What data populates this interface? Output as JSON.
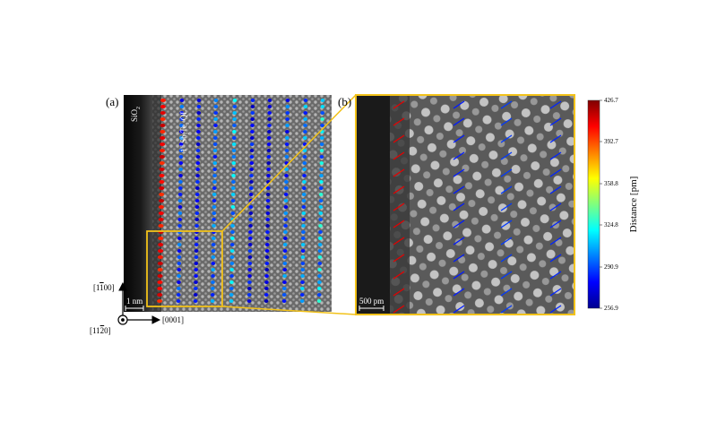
{
  "panels": {
    "a": {
      "label": "(a)",
      "sio2": "SiO",
      "sio2_sub": "2",
      "layer": "1",
      "layer_sup": "st",
      "layer_text": " Sb",
      "layer_sub1": "2",
      "layer_te": "Te",
      "layer_sub2": "3",
      "layer_ql": " QL",
      "scalebar": "1 nm"
    },
    "b": {
      "label": "(b)",
      "scalebar": "500 pm"
    }
  },
  "axes": {
    "up_label_pre": "[1",
    "up_label_bar": "1",
    "up_label_post": "00]",
    "right_label": "[0001]",
    "out_label_pre": "[11",
    "out_label_bar": "2",
    "out_label_post": "0]"
  },
  "colorbar": {
    "title": "Distance [pm]",
    "ticks": [
      "426.7",
      "392.7",
      "358.8",
      "324.8",
      "290.9",
      "256.9"
    ],
    "min": 256.9,
    "max": 426.7
  },
  "colors": {
    "highlight_box": "#f2c21a",
    "background": "#ffffff"
  }
}
